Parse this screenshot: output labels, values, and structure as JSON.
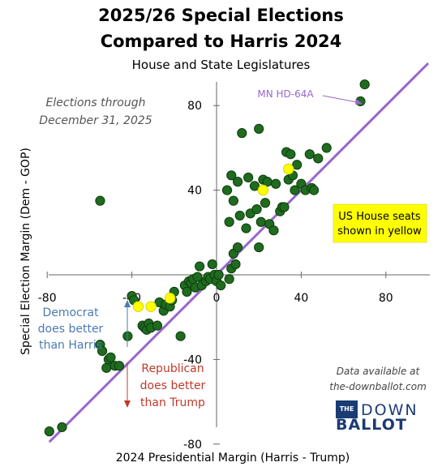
{
  "header": {
    "title_line1": "2025/26 Special Elections",
    "title_line2": "Compared to Harris 2024",
    "subtitle": "House and State Legislatures"
  },
  "chart_data": {
    "type": "scatter",
    "xlabel": "2024 Presidential  Margin  (Harris - Trump)",
    "ylabel": "Special Election Margin  (Dem - GOP)",
    "xlim": [
      -80,
      100
    ],
    "ylim": [
      -80,
      100
    ],
    "x_ticks": [
      -80,
      -40,
      0,
      40,
      80
    ],
    "x_tick_labels": [
      "-80",
      "-40",
      "0",
      "40",
      "80"
    ],
    "y_ticks": [
      -80,
      -40,
      0,
      40,
      80
    ],
    "y_tick_labels": [
      "-80",
      "-40",
      "0",
      "40",
      "80"
    ],
    "grid": false,
    "reference_line": {
      "slope": 1,
      "intercept": 0,
      "color": "#9966cc"
    },
    "colors": {
      "state": "#1f6b1f",
      "state_edge": "#0d3d0d",
      "house": "#ffff00",
      "house_edge": "#d4d400",
      "line": "#9966cc",
      "note_box": "#ffff00",
      "dem_text": "#4a7ab5",
      "rep_text": "#c0392b"
    },
    "series": [
      {
        "marker": "green",
        "points": [
          [
            -79,
            -74
          ],
          [
            -73,
            -72
          ],
          [
            -55,
            35
          ],
          [
            -55,
            -33
          ],
          [
            -54,
            -36
          ],
          [
            -52,
            -44
          ],
          [
            -51,
            -40
          ],
          [
            -50,
            -39
          ],
          [
            -48,
            -43
          ],
          [
            -46,
            -43
          ],
          [
            -42,
            -29
          ],
          [
            -40,
            -10
          ],
          [
            -39,
            -12
          ],
          [
            -35,
            -24
          ],
          [
            -34,
            -25
          ],
          [
            -33,
            -26
          ],
          [
            -32,
            -23
          ],
          [
            -31,
            -25
          ],
          [
            -28,
            -24
          ],
          [
            -27,
            -13
          ],
          [
            -25,
            -17
          ],
          [
            -24,
            -14
          ],
          [
            -22,
            -15
          ],
          [
            -21,
            -12
          ],
          [
            -20,
            -8
          ],
          [
            -17,
            -29
          ],
          [
            -15,
            -5
          ],
          [
            -14,
            -8
          ],
          [
            -13,
            -3
          ],
          [
            -12,
            -4
          ],
          [
            -11,
            -2
          ],
          [
            -10,
            -6
          ],
          [
            -9,
            -1
          ],
          [
            -8,
            4
          ],
          [
            -7,
            -5
          ],
          [
            -5,
            -3
          ],
          [
            -4,
            -1
          ],
          [
            -3,
            -2
          ],
          [
            -2,
            5
          ],
          [
            -1,
            0
          ],
          [
            0,
            -3
          ],
          [
            1,
            0
          ],
          [
            2,
            -5
          ],
          [
            6,
            -2
          ],
          [
            7,
            3
          ],
          [
            8,
            10
          ],
          [
            9,
            5
          ],
          [
            10,
            13
          ],
          [
            6,
            25
          ],
          [
            5,
            40
          ],
          [
            7,
            47
          ],
          [
            8,
            35
          ],
          [
            10,
            44
          ],
          [
            11,
            28
          ],
          [
            12,
            67
          ],
          [
            14,
            22
          ],
          [
            15,
            46
          ],
          [
            16,
            29
          ],
          [
            18,
            42
          ],
          [
            19,
            31
          ],
          [
            20,
            13
          ],
          [
            21,
            25
          ],
          [
            22,
            45
          ],
          [
            23,
            34
          ],
          [
            24,
            44
          ],
          [
            25,
            24
          ],
          [
            27,
            21
          ],
          [
            28,
            43
          ],
          [
            30,
            30
          ],
          [
            31,
            32
          ],
          [
            32,
            32
          ],
          [
            33,
            58
          ],
          [
            34,
            45
          ],
          [
            35,
            57
          ],
          [
            36,
            47
          ],
          [
            37,
            40
          ],
          [
            38,
            52
          ],
          [
            40,
            43
          ],
          [
            42,
            40
          ],
          [
            44,
            57
          ],
          [
            45,
            41
          ],
          [
            46,
            40
          ],
          [
            48,
            55
          ],
          [
            52,
            60
          ],
          [
            68,
            82
          ],
          [
            70,
            90
          ],
          [
            20,
            69
          ]
        ]
      },
      {
        "marker": "yellow",
        "points": [
          [
            -37,
            -15
          ],
          [
            -31,
            -15
          ],
          [
            -22,
            -11
          ],
          [
            22,
            40
          ],
          [
            34,
            50
          ]
        ]
      }
    ],
    "annotations": {
      "elections_through_line1": "Elections through",
      "elections_through_line2": "December  31, 2025",
      "mn_label": "MN HD-64A",
      "house_note_line1": "US House seats",
      "house_note_line2": "shown in yellow",
      "dem_line1": "Democrat",
      "dem_line2": "does better",
      "dem_line3": "than Harris",
      "rep_line1": "Republican",
      "rep_line2": "does better",
      "rep_line3": "than Trump",
      "data_line1": "Data available at",
      "data_line2": "the-downballot.com"
    }
  },
  "logo": {
    "box_text": "THE",
    "word1": "DOWN",
    "word2": "BALLOT"
  }
}
